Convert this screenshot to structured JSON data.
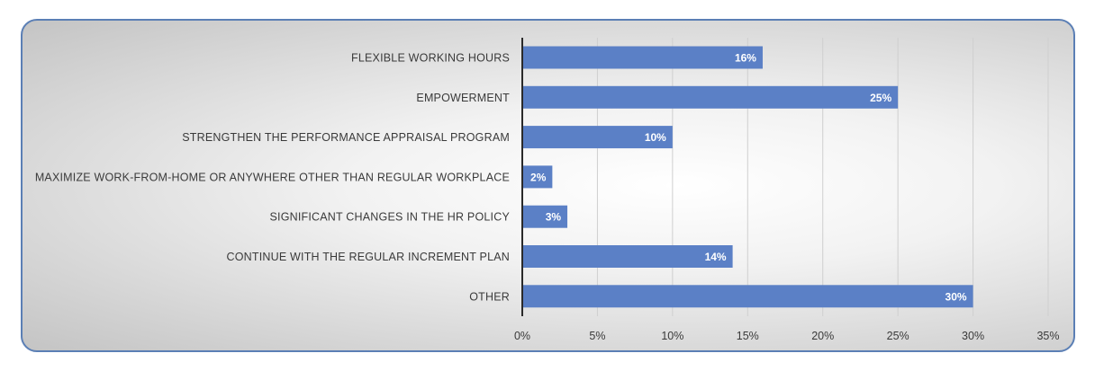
{
  "chart_data": {
    "type": "bar",
    "orientation": "horizontal",
    "categories": [
      "FLEXIBLE WORKING HOURS",
      "EMPOWERMENT",
      "STRENGTHEN THE PERFORMANCE APPRAISAL PROGRAM",
      "MAXIMIZE WORK-FROM-HOME OR ANYWHERE OTHER THAN REGULAR WORKPLACE",
      "SIGNIFICANT CHANGES IN THE HR POLICY",
      "CONTINUE WITH THE REGULAR INCREMENT PLAN",
      "OTHER"
    ],
    "values": [
      16,
      25,
      10,
      2,
      3,
      14,
      30
    ],
    "data_labels": [
      "16%",
      "25%",
      "10%",
      "2%",
      "3%",
      "14%",
      "30%"
    ],
    "x_ticks": [
      "0%",
      "5%",
      "10%",
      "15%",
      "20%",
      "25%",
      "30%",
      "35%"
    ],
    "xlim": [
      0,
      35
    ],
    "grid": true,
    "bar_color": "#5b80c6",
    "title": "",
    "xlabel": "",
    "ylabel": ""
  }
}
